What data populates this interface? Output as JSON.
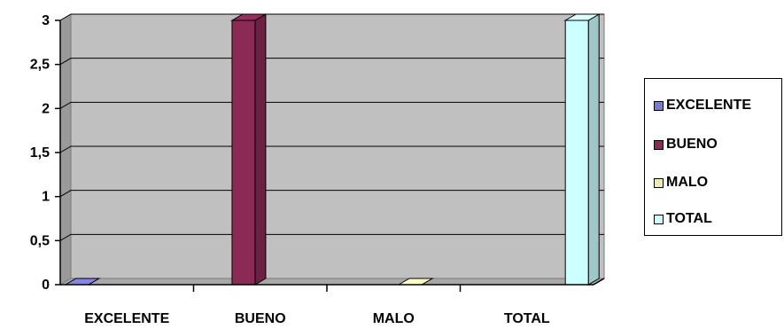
{
  "chart_data": {
    "type": "bar",
    "categories": [
      "EXCELENTE",
      "BUENO",
      "MALO",
      "TOTAL"
    ],
    "series": [
      {
        "name": "EXCELENTE",
        "values": [
          0,
          null,
          null,
          null
        ],
        "color": "#7b7bd6"
      },
      {
        "name": "BUENO",
        "values": [
          null,
          3,
          null,
          null
        ],
        "color": "#8b2a55"
      },
      {
        "name": "MALO",
        "values": [
          null,
          null,
          0,
          null
        ],
        "color": "#ecebb8"
      },
      {
        "name": "TOTAL",
        "values": [
          null,
          null,
          null,
          3
        ],
        "color": "#ccffff"
      }
    ],
    "ylim": [
      0,
      3
    ],
    "yticks": [
      "0",
      "0,5",
      "1",
      "1,5",
      "2",
      "2,5",
      "3"
    ],
    "grid": true,
    "legend_position": "right",
    "style": "3d-column",
    "plot_background": "#c0c0c0"
  }
}
